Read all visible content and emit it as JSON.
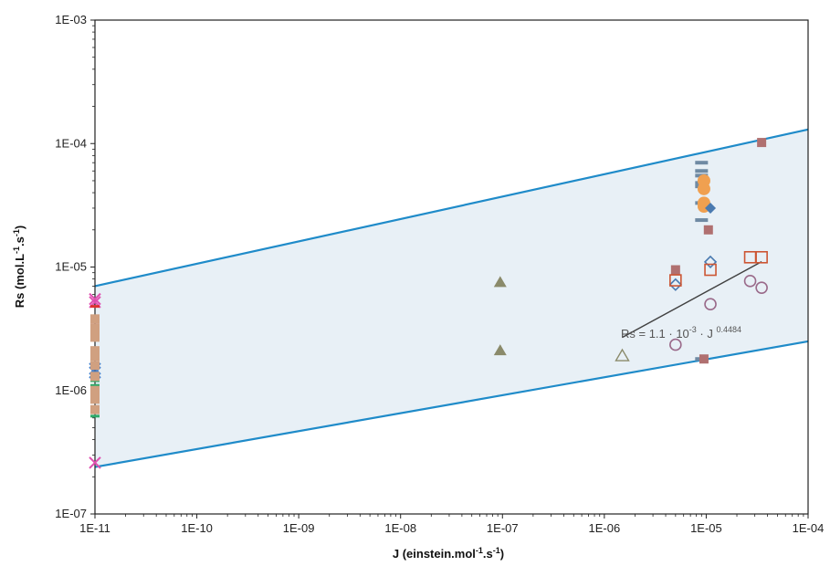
{
  "chart_data": {
    "type": "scatter",
    "x_scale": "log",
    "y_scale": "log",
    "xlim": [
      1e-11,
      0.0001
    ],
    "ylim": [
      1e-07,
      0.001
    ],
    "x_ticks": [
      "1E-11",
      "1E-10",
      "1E-09",
      "1E-08",
      "1E-07",
      "1E-06",
      "1E-05",
      "1E-04"
    ],
    "y_ticks": [
      "1E-07",
      "1E-06",
      "1E-05",
      "1E-04",
      "1E-03"
    ],
    "x_tick_values": [
      1e-11,
      1e-10,
      1e-09,
      1e-08,
      1e-07,
      1e-06,
      1e-05,
      0.0001
    ],
    "y_tick_values": [
      1e-07,
      1e-06,
      1e-05,
      0.0001,
      0.001
    ],
    "xlabel": {
      "main": "J (einstein.mol",
      "sup1": "-1",
      "mid": ".s",
      "sup2": "-1",
      "end": ")"
    },
    "ylabel": {
      "main": "Rs (mol.L",
      "sup1": "-1",
      "mid": ".s",
      "sup2": "-1",
      "end": ")"
    },
    "grid": false,
    "legend": "none",
    "colors": {
      "band_fill": "#e8f0f6",
      "band_edge": "#1f8bc9",
      "fit_line": "#404040",
      "grey_bar": "#6f8aa3",
      "orange": "#f0a050",
      "brown_square": "#b07070",
      "blue_diamond": "#4a7ab0",
      "red_open": "#cc5533",
      "purple_open": "#9a6a8a",
      "olive_triangle": "#8a8a6a",
      "magenta": "#e050b0",
      "blue_x": "#4a80c8",
      "green": "#2eaa6a",
      "red": "#dd3333",
      "tan": "#d0a080"
    },
    "band": {
      "upper": [
        {
          "x": 1e-11,
          "y": 7e-06
        },
        {
          "x": 0.0001,
          "y": 0.00013
        }
      ],
      "lower": [
        {
          "x": 1e-11,
          "y": 2.4e-07
        },
        {
          "x": 0.0001,
          "y": 2.5e-06
        }
      ]
    },
    "fit": {
      "equation": {
        "lead": "Rs = 1.1 · 10",
        "sup1": "-3",
        "mid": " · J ",
        "sup2": "0.4484"
      },
      "x_range": [
        1.5e-06,
        3.5e-05
      ]
    },
    "series": [
      {
        "marker": "grey-bar",
        "color": "#6f8aa3",
        "points": [
          [
            9e-06,
            7e-05
          ],
          [
            9e-06,
            6e-05
          ],
          [
            9e-06,
            5.5e-05
          ],
          [
            9e-06,
            4.8e-05
          ],
          [
            9e-06,
            4.5e-05
          ],
          [
            9e-06,
            2.4e-05
          ],
          [
            9e-06,
            3.3e-05
          ],
          [
            9e-06,
            1.8e-06
          ]
        ]
      },
      {
        "marker": "filled-circle",
        "color": "#f0a050",
        "points": [
          [
            9.5e-06,
            5e-05
          ],
          [
            9.5e-06,
            4.3e-05
          ],
          [
            9.5e-06,
            3.3e-05
          ],
          [
            9.5e-06,
            3.1e-05
          ]
        ]
      },
      {
        "marker": "filled-square",
        "color": "#b07070",
        "points": [
          [
            3.5e-05,
            0.000102
          ],
          [
            1.05e-05,
            2e-05
          ],
          [
            5e-06,
            9.5e-06
          ],
          [
            9.5e-06,
            1.8e-06
          ]
        ]
      },
      {
        "marker": "filled-diamond",
        "color": "#4a7ab0",
        "points": [
          [
            1.1e-05,
            3e-05
          ]
        ]
      },
      {
        "marker": "open-diamond",
        "color": "#4a7ab0",
        "points": [
          [
            1.1e-05,
            1.1e-05
          ],
          [
            5e-06,
            7.2e-06
          ]
        ]
      },
      {
        "marker": "open-square",
        "color": "#cc5533",
        "points": [
          [
            2.7e-05,
            1.2e-05
          ],
          [
            3.5e-05,
            1.2e-05
          ],
          [
            1.1e-05,
            9.5e-06
          ],
          [
            5e-06,
            7.8e-06
          ]
        ]
      },
      {
        "marker": "open-circle",
        "color": "#9a6a8a",
        "points": [
          [
            2.7e-05,
            7.7e-06
          ],
          [
            3.5e-05,
            6.8e-06
          ],
          [
            1.1e-05,
            5e-06
          ],
          [
            5e-06,
            2.35e-06
          ]
        ]
      },
      {
        "marker": "filled-triangle",
        "color": "#8a8a6a",
        "points": [
          [
            9.5e-08,
            7.5e-06
          ],
          [
            9.5e-08,
            2.1e-06
          ]
        ]
      },
      {
        "marker": "open-triangle",
        "color": "#8a8a6a",
        "points": [
          [
            1.5e-06,
            1.9e-06
          ]
        ]
      },
      {
        "marker": "x",
        "color": "#e050b0",
        "points": [
          [
            1e-11,
            5.5e-06
          ],
          [
            1e-11,
            5.2e-06
          ],
          [
            1e-11,
            2.6e-07
          ]
        ]
      },
      {
        "marker": "x",
        "color": "#4a80c8",
        "points": [
          [
            1e-11,
            1.5e-06
          ],
          [
            1e-11,
            1.4e-06
          ]
        ]
      },
      {
        "marker": "dash",
        "color": "#dd3333",
        "points": [
          [
            1e-11,
            4.8e-06
          ],
          [
            1e-11,
            3.6e-06
          ],
          [
            1e-11,
            3.4e-06
          ]
        ]
      },
      {
        "marker": "dash",
        "color": "#2eaa6a",
        "points": [
          [
            1e-11,
            1.2e-06
          ],
          [
            1e-11,
            1.1e-06
          ],
          [
            1e-11,
            6.2e-07
          ]
        ]
      },
      {
        "marker": "filled-square",
        "color": "#d0a080",
        "points": [
          [
            1e-11,
            3.8e-06
          ],
          [
            1e-11,
            3.2e-06
          ],
          [
            1e-11,
            2.9e-06
          ],
          [
            1e-11,
            2.7e-06
          ],
          [
            1e-11,
            2.1e-06
          ],
          [
            1e-11,
            1.9e-06
          ],
          [
            1e-11,
            1.6e-06
          ],
          [
            1e-11,
            1.3e-06
          ],
          [
            1e-11,
            1e-06
          ],
          [
            1e-11,
            8.5e-07
          ],
          [
            1e-11,
            7e-07
          ]
        ]
      }
    ]
  }
}
